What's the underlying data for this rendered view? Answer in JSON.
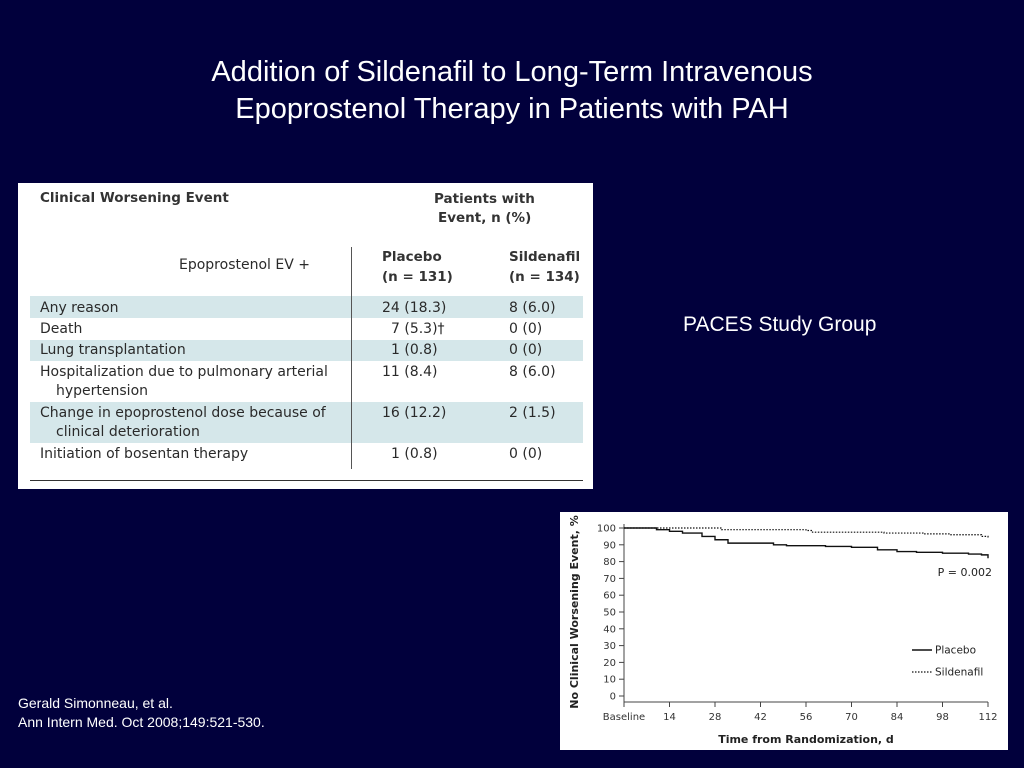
{
  "slide": {
    "title_line1": "Addition of Sildenafil to Long-Term Intravenous",
    "title_line2": "Epoprostenol Therapy in Patients with PAH",
    "study_group": "PACES Study Group",
    "citation_line1": "Gerald Simonneau, et al.",
    "citation_line2": "Ann Intern Med. Oct 2008;149:521-530."
  },
  "table": {
    "col_header_event": "Clinical Worsening Event",
    "col_header_patients_line1": "Patients with",
    "col_header_patients_line2": "Event, n (%)",
    "subheader_left": "Epoprostenol EV    +",
    "placebo_label": "Placebo",
    "placebo_n": "(n = 131)",
    "sildenafil_label": "Sildenafil",
    "sildenafil_n": "(n = 134)",
    "rows": [
      {
        "event_line1": "Any reason",
        "event_line2": "",
        "placebo": "24 (18.3)",
        "sildenafil": "8 (6.0)",
        "shaded": true
      },
      {
        "event_line1": "Death",
        "event_line2": "",
        "placebo": "7 (5.3)†",
        "sildenafil": "0 (0)",
        "shaded": false
      },
      {
        "event_line1": "Lung transplantation",
        "event_line2": "",
        "placebo": "1 (0.8)",
        "sildenafil": "0 (0)",
        "shaded": true
      },
      {
        "event_line1": "Hospitalization due to pulmonary arterial",
        "event_line2": "hypertension",
        "placebo": "11 (8.4)",
        "sildenafil": "8 (6.0)",
        "shaded": false
      },
      {
        "event_line1": "Change in epoprostenol dose because of",
        "event_line2": "clinical deterioration",
        "placebo": "16 (12.2)",
        "sildenafil": "2 (1.5)",
        "shaded": true
      },
      {
        "event_line1": "Initiation of bosentan therapy",
        "event_line2": "",
        "placebo": "1 (0.8)",
        "sildenafil": "0 (0)",
        "shaded": false
      }
    ],
    "shade_color": "#d5e7ea"
  },
  "colors": {
    "background": "#01003c",
    "text": "#ffffff",
    "panel": "#ffffff"
  },
  "chart_data": {
    "type": "line",
    "title": "",
    "xlabel": "Time from Randomization, d",
    "ylabel": "No Clinical Worsening Event, %",
    "x_ticks": [
      "Baseline",
      "14",
      "28",
      "42",
      "56",
      "70",
      "84",
      "98",
      "112"
    ],
    "y_ticks": [
      "0",
      "10",
      "20",
      "30",
      "40",
      "50",
      "60",
      "70",
      "80",
      "90",
      "100"
    ],
    "xlim": [
      0,
      112
    ],
    "ylim": [
      0,
      100
    ],
    "annotation": "P = 0.002",
    "legend_position": "bottom-right",
    "series": [
      {
        "name": "Placebo",
        "style": "solid",
        "x": [
          0,
          8,
          10,
          14,
          18,
          24,
          28,
          32,
          33,
          46,
          50,
          62,
          70,
          78,
          84,
          90,
          98,
          106,
          110,
          112
        ],
        "y": [
          100,
          100,
          99,
          98,
          97,
          95,
          93,
          91,
          91,
          90,
          89.5,
          89,
          88.5,
          87,
          86,
          85.5,
          85,
          84.5,
          84,
          82
        ]
      },
      {
        "name": "Sildenafil",
        "style": "dotted",
        "x": [
          0,
          28,
          30,
          56,
          58,
          80,
          92,
          100,
          110,
          112
        ],
        "y": [
          100,
          100,
          99,
          98.5,
          97.5,
          97,
          96.5,
          96,
          95,
          94
        ]
      }
    ]
  }
}
